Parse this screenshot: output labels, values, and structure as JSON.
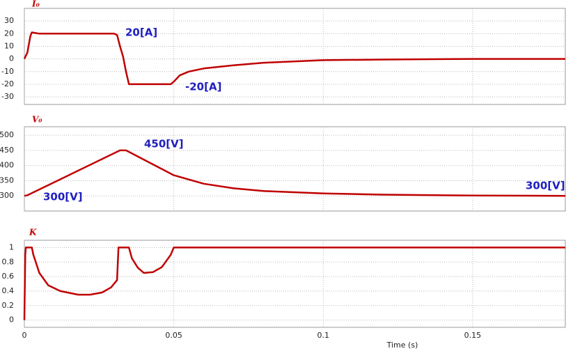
{
  "chart_data": [
    {
      "type": "line",
      "title": "I₀",
      "color": "#c00000",
      "grid": true,
      "x": [
        0,
        0.001,
        0.002,
        0.0025,
        0.005,
        0.03,
        0.031,
        0.032,
        0.033,
        0.034,
        0.035,
        0.04,
        0.049,
        0.05,
        0.052,
        0.055,
        0.06,
        0.07,
        0.08,
        0.09,
        0.1,
        0.12,
        0.15,
        0.181
      ],
      "values": [
        0,
        5,
        18,
        21,
        20,
        20,
        19,
        10,
        2,
        -10,
        -20,
        -20,
        -20,
        -18,
        -13,
        -10,
        -7.5,
        -5,
        -3,
        -2,
        -1,
        -0.5,
        0,
        0
      ],
      "xlim": [
        0,
        0.181
      ],
      "xticks": [
        0,
        0.05,
        0.1,
        0.15
      ],
      "ylim": [
        -36,
        40
      ],
      "yticks": [
        -30,
        -20,
        -10,
        0,
        10,
        20,
        30
      ],
      "annotations": [
        "20[A]",
        "-20[A]"
      ]
    },
    {
      "type": "line",
      "title": "V₀",
      "color": "#c00000",
      "grid": true,
      "x": [
        0,
        0.001,
        0.032,
        0.034,
        0.05,
        0.06,
        0.07,
        0.08,
        0.1,
        0.12,
        0.15,
        0.181
      ],
      "values": [
        300,
        302,
        450,
        450,
        368,
        340,
        325,
        316,
        308,
        304,
        301,
        300
      ],
      "xlim": [
        0,
        0.181
      ],
      "xticks": [
        0,
        0.05,
        0.1,
        0.15
      ],
      "ylim": [
        250,
        528
      ],
      "yticks": [
        300,
        350,
        400,
        450,
        500
      ],
      "annotations": [
        "450[V]",
        "300[V]",
        "300[V]"
      ]
    },
    {
      "type": "line",
      "title": "K",
      "color": "#c00000",
      "grid": true,
      "x": [
        0,
        0.0003,
        0.0005,
        0.0025,
        0.003,
        0.005,
        0.008,
        0.012,
        0.018,
        0.022,
        0.026,
        0.029,
        0.031,
        0.0315,
        0.035,
        0.036,
        0.038,
        0.04,
        0.043,
        0.046,
        0.049,
        0.05,
        0.181
      ],
      "values": [
        0,
        0.9,
        1,
        1,
        0.9,
        0.65,
        0.48,
        0.4,
        0.35,
        0.35,
        0.38,
        0.45,
        0.55,
        1,
        1,
        0.85,
        0.72,
        0.65,
        0.66,
        0.73,
        0.9,
        1,
        1
      ],
      "xlim": [
        0,
        0.181
      ],
      "xticks": [
        0,
        0.05,
        0.1,
        0.15
      ],
      "ylim": [
        -0.1,
        1.1
      ],
      "yticks": [
        0,
        0.2,
        0.4,
        0.6,
        0.8,
        1
      ],
      "xlabel": "Time (s)"
    }
  ]
}
